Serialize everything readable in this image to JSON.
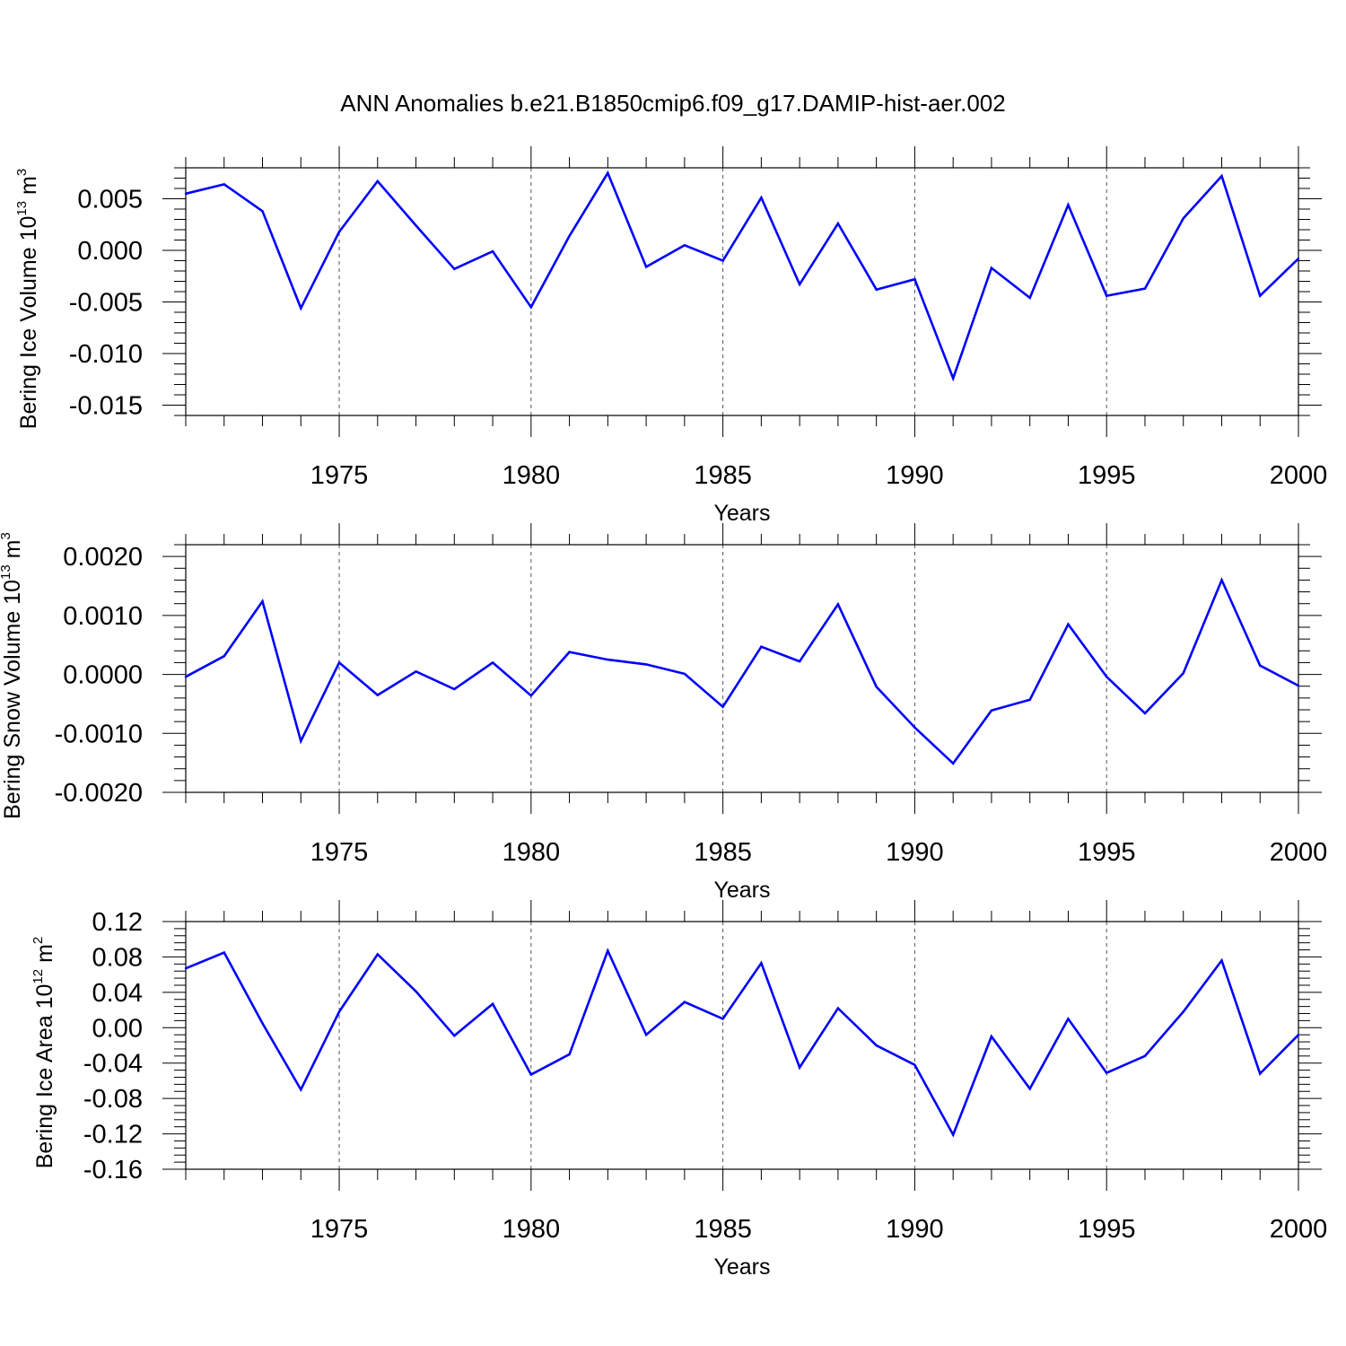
{
  "figure": {
    "title": "ANN Anomalies b.e21.B1850cmip6.f09_g17.DAMIP-hist-aer.002"
  },
  "chart_data": [
    {
      "type": "line",
      "ylabel_main": "Bering Ice Volume 10",
      "ylabel_exp": "13",
      "ylabel_unit": "m",
      "ylabel_unit_exp": "3",
      "xlabel": "Years",
      "xlim": [
        1971,
        2000
      ],
      "ylim": [
        -0.016,
        0.008
      ],
      "x_ticks": [
        1975,
        1980,
        1985,
        1990,
        1995,
        2000
      ],
      "y_ticks": [
        0.005,
        0.0,
        -0.005,
        -0.01,
        -0.015
      ],
      "y_tick_labels": [
        "0.005",
        "0.000",
        "-0.005",
        "-0.010",
        "-0.015"
      ],
      "grid_x": [
        1975,
        1980,
        1985,
        1990,
        1995
      ],
      "line_color": "#0000ff",
      "series": [
        {
          "name": "Bering Ice Volume",
          "x": [
            1971,
            1972,
            1973,
            1974,
            1975,
            1976,
            1977,
            1978,
            1979,
            1980,
            1981,
            1982,
            1983,
            1984,
            1985,
            1986,
            1987,
            1988,
            1989,
            1990,
            1991,
            1992,
            1993,
            1994,
            1995,
            1996,
            1997,
            1998,
            1999,
            2000
          ],
          "values": [
            0.0055,
            0.0064,
            0.0038,
            -0.0056,
            0.0018,
            0.0067,
            0.0024,
            -0.0018,
            -0.0001,
            -0.0055,
            0.0014,
            0.0075,
            -0.0016,
            0.0005,
            -0.001,
            0.0051,
            -0.0033,
            0.0026,
            -0.0038,
            -0.0028,
            -0.0124,
            -0.0017,
            -0.0046,
            0.0044,
            -0.0044,
            -0.0037,
            0.0031,
            0.0072,
            -0.0044,
            -0.0008
          ]
        }
      ]
    },
    {
      "type": "line",
      "ylabel_main": "Bering Snow Volume 10",
      "ylabel_exp": "13",
      "ylabel_unit": "m",
      "ylabel_unit_exp": "3",
      "xlabel": "Years",
      "xlim": [
        1971,
        2000
      ],
      "ylim": [
        -0.002,
        0.0022
      ],
      "x_ticks": [
        1975,
        1980,
        1985,
        1990,
        1995,
        2000
      ],
      "y_ticks": [
        0.002,
        0.001,
        0.0,
        -0.001,
        -0.002
      ],
      "y_tick_labels": [
        "0.0020",
        "0.0010",
        "0.0000",
        "-0.0010",
        "-0.0020"
      ],
      "grid_x": [
        1975,
        1980,
        1985,
        1990,
        1995
      ],
      "line_color": "#0000ff",
      "series": [
        {
          "name": "Bering Snow Volume",
          "x": [
            1971,
            1972,
            1973,
            1974,
            1975,
            1976,
            1977,
            1978,
            1979,
            1980,
            1981,
            1982,
            1983,
            1984,
            1985,
            1986,
            1987,
            1988,
            1989,
            1990,
            1991,
            1992,
            1993,
            1994,
            1995,
            1996,
            1997,
            1998,
            1999,
            2000
          ],
          "values": [
            -4e-05,
            0.00031,
            0.00124,
            -0.00113,
            0.0002,
            -0.00035,
            5e-05,
            -0.00025,
            0.0002,
            -0.00036,
            0.00038,
            0.00025,
            0.00017,
            1e-05,
            -0.00055,
            0.00047,
            0.00022,
            0.00119,
            -0.00021,
            -0.0009,
            -0.00151,
            -0.00061,
            -0.00043,
            0.00085,
            -4e-05,
            -0.00066,
            2e-05,
            0.0016,
            0.00015,
            -0.00019
          ]
        }
      ]
    },
    {
      "type": "line",
      "ylabel_main": "Bering Ice Area 10",
      "ylabel_exp": "12",
      "ylabel_unit": "m",
      "ylabel_unit_exp": "2",
      "xlabel": "Years",
      "xlim": [
        1971,
        2000
      ],
      "ylim": [
        -0.16,
        0.12
      ],
      "x_ticks": [
        1975,
        1980,
        1985,
        1990,
        1995,
        2000
      ],
      "y_ticks": [
        0.12,
        0.08,
        0.04,
        0.0,
        -0.04,
        -0.08,
        -0.12,
        -0.16
      ],
      "y_tick_labels": [
        "0.12",
        "0.08",
        "0.04",
        "0.00",
        "-0.04",
        "-0.08",
        "-0.12",
        "-0.16"
      ],
      "grid_x": [
        1975,
        1980,
        1985,
        1990,
        1995
      ],
      "line_color": "#0000ff",
      "series": [
        {
          "name": "Bering Ice Area",
          "x": [
            1971,
            1972,
            1973,
            1974,
            1975,
            1976,
            1977,
            1978,
            1979,
            1980,
            1981,
            1982,
            1983,
            1984,
            1985,
            1986,
            1987,
            1988,
            1989,
            1990,
            1991,
            1992,
            1993,
            1994,
            1995,
            1996,
            1997,
            1998,
            1999,
            2000
          ],
          "values": [
            0.067,
            0.085,
            0.005,
            -0.07,
            0.018,
            0.083,
            0.041,
            -0.009,
            0.027,
            -0.053,
            -0.03,
            0.087,
            -0.008,
            0.029,
            0.01,
            0.073,
            -0.045,
            0.022,
            -0.02,
            -0.042,
            -0.121,
            -0.01,
            -0.069,
            0.01,
            -0.051,
            -0.032,
            0.018,
            0.076,
            -0.052,
            -0.008
          ]
        }
      ]
    }
  ]
}
